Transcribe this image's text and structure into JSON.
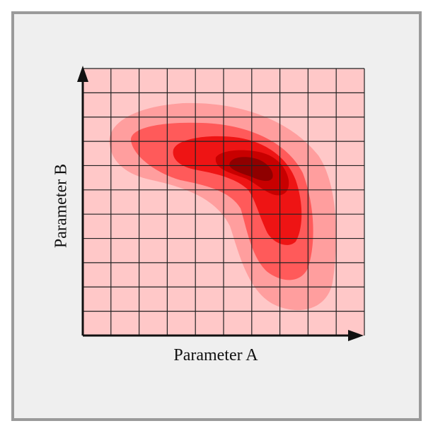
{
  "figure": {
    "x_axis_label": "Parameter A",
    "y_axis_label": "Parameter B",
    "colors": {
      "frame_border": "#9a9a9a",
      "panel_background": "#efefef",
      "plot_background": "#ffc8c8",
      "grid_line": "#222222",
      "axis": "#111111",
      "density_levels": [
        "#ff9e9e",
        "#ff5a5a",
        "#ee1414",
        "#c80000",
        "#8f0000"
      ]
    },
    "grid": {
      "columns": 10,
      "rows": 11
    },
    "contours": {
      "levels": 5,
      "shape": "banana-shaped nested probability regions"
    }
  }
}
